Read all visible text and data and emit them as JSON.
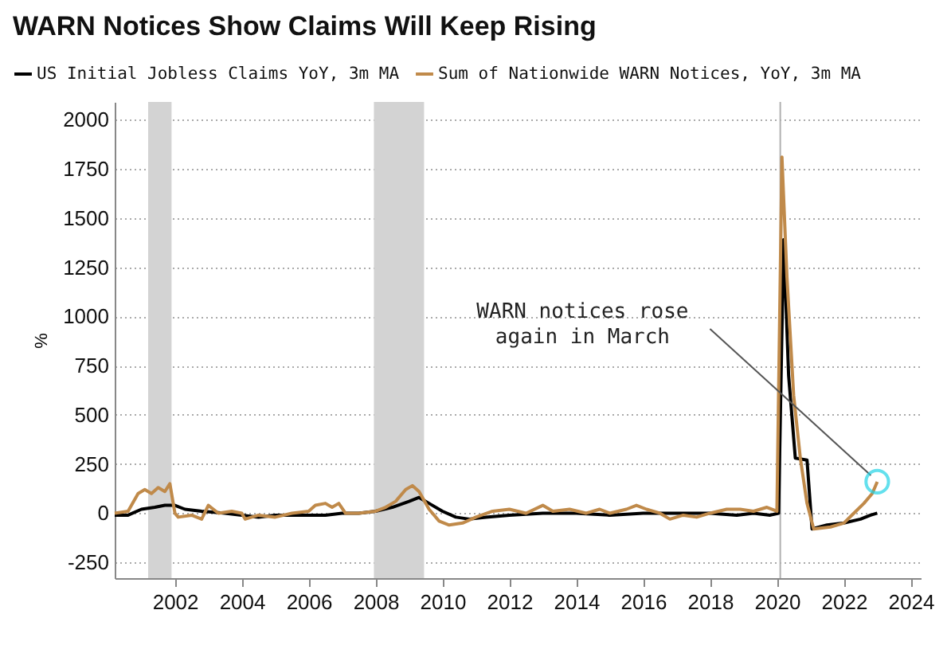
{
  "chart_data": {
    "type": "line",
    "title": "WARN Notices Show Claims Will Keep Rising",
    "ylabel": "%",
    "xlim": [
      2000.2,
      2024.3
    ],
    "xticks": [
      2002,
      2004,
      2006,
      2008,
      2010,
      2012,
      2014,
      2016,
      2018,
      2020,
      2022,
      2024
    ],
    "ylim": [
      -330,
      2090
    ],
    "yticks": [
      -250,
      0,
      250,
      500,
      750,
      1000,
      1250,
      1500,
      1750,
      2000
    ],
    "grid": "y",
    "legend": "top",
    "series": [
      {
        "name": "US Initial Jobless Claims YoY, 3m MA",
        "color": "#000000",
        "x": [
          2000.2,
          2000.6,
          2001.0,
          2001.4,
          2001.7,
          2002.0,
          2002.3,
          2002.8,
          2003.5,
          2004.0,
          2004.5,
          2005.0,
          2005.5,
          2006.0,
          2006.5,
          2007.0,
          2007.5,
          2008.0,
          2008.5,
          2009.0,
          2009.3,
          2009.6,
          2010.0,
          2010.4,
          2010.8,
          2011.3,
          2012.0,
          2013.0,
          2014.0,
          2015.0,
          2016.0,
          2017.0,
          2018.0,
          2018.8,
          2019.3,
          2019.8,
          2020.05,
          2020.2,
          2020.35,
          2020.55,
          2020.9,
          2021.05,
          2021.5,
          2022.0,
          2022.5,
          2022.8,
          2023.0
        ],
        "values": [
          -10,
          -10,
          20,
          30,
          40,
          40,
          20,
          10,
          0,
          -10,
          -20,
          -10,
          -10,
          -10,
          -10,
          0,
          0,
          10,
          30,
          60,
          80,
          50,
          10,
          -20,
          -30,
          -20,
          -10,
          0,
          0,
          -10,
          0,
          0,
          0,
          -10,
          0,
          -10,
          0,
          1390,
          700,
          280,
          270,
          -80,
          -60,
          -50,
          -30,
          -10,
          0
        ]
      },
      {
        "name": "Sum of Nationwide WARN Notices, YoY, 3m MA",
        "color": "#c08a4a",
        "x": [
          2000.2,
          2000.6,
          2000.9,
          2001.1,
          2001.3,
          2001.5,
          2001.7,
          2001.85,
          2002.0,
          2002.1,
          2002.5,
          2002.8,
          2003.0,
          2003.3,
          2003.7,
          2004.0,
          2004.1,
          2004.5,
          2005.0,
          2005.5,
          2006.0,
          2006.2,
          2006.5,
          2006.7,
          2006.9,
          2007.1,
          2007.5,
          2008.0,
          2008.3,
          2008.6,
          2008.9,
          2009.1,
          2009.3,
          2009.6,
          2009.9,
          2010.2,
          2010.6,
          2011.0,
          2011.5,
          2012.0,
          2012.5,
          2013.0,
          2013.3,
          2013.8,
          2014.3,
          2014.7,
          2015.0,
          2015.5,
          2015.8,
          2016.1,
          2016.5,
          2016.8,
          2017.2,
          2017.6,
          2018.0,
          2018.5,
          2018.9,
          2019.3,
          2019.7,
          2020.0,
          2020.15,
          2020.3,
          2020.5,
          2020.7,
          2020.9,
          2021.1,
          2021.6,
          2022.0,
          2022.3,
          2022.6,
          2022.85,
          2023.0
        ],
        "values": [
          0,
          10,
          100,
          120,
          100,
          130,
          110,
          150,
          0,
          -20,
          -10,
          -30,
          40,
          0,
          10,
          0,
          -30,
          -10,
          -20,
          0,
          10,
          40,
          50,
          30,
          50,
          0,
          0,
          10,
          30,
          60,
          120,
          140,
          110,
          20,
          -40,
          -60,
          -50,
          -20,
          10,
          20,
          0,
          40,
          10,
          20,
          0,
          20,
          0,
          20,
          40,
          20,
          0,
          -30,
          -10,
          -20,
          0,
          20,
          20,
          10,
          30,
          10,
          1810,
          1200,
          600,
          280,
          50,
          -80,
          -70,
          -50,
          0,
          50,
          100,
          160
        ]
      }
    ],
    "ref_lines": [
      {
        "axis": "x",
        "value": 2020.1,
        "color": "#b0b0b0"
      }
    ],
    "bands": [
      {
        "axis": "x",
        "from": 2001.2,
        "to": 2001.9,
        "color": "#d3d3d3"
      },
      {
        "axis": "x",
        "from": 2007.95,
        "to": 2009.45,
        "color": "#d3d3d3"
      }
    ],
    "annotations": [
      {
        "text": "WARN notices rose\nagain in March",
        "x": 2023.0,
        "y": 160
      }
    ]
  }
}
